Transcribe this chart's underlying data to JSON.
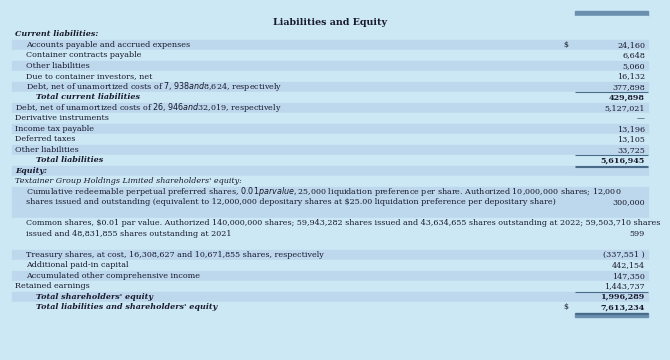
{
  "title": "Liabilities and Equity",
  "bg_light": "#cce8f4",
  "bg_dark": "#bdd8ec",
  "text_color": "#1a1a2e",
  "line_color": "#4a6a8a",
  "top_bar_color": "#6a8faf",
  "font_size": 5.8,
  "title_font_size": 6.8,
  "rows": [
    {
      "label": "Current liabilities:",
      "indent": 0,
      "value": "",
      "dollar": false,
      "bold": true,
      "italic": true,
      "bg": 0,
      "line_below_val": false,
      "dbl_below": false,
      "nlines": 1
    },
    {
      "label": "Accounts payable and accrued expenses",
      "indent": 1,
      "value": "24,160",
      "dollar": true,
      "bold": false,
      "italic": false,
      "bg": 1,
      "line_below_val": false,
      "dbl_below": false,
      "nlines": 1
    },
    {
      "label": "Container contracts payable",
      "indent": 1,
      "value": "6,648",
      "dollar": false,
      "bold": false,
      "italic": false,
      "bg": 0,
      "line_below_val": false,
      "dbl_below": false,
      "nlines": 1
    },
    {
      "label": "Other liabilities",
      "indent": 1,
      "value": "5,060",
      "dollar": false,
      "bold": false,
      "italic": false,
      "bg": 1,
      "line_below_val": false,
      "dbl_below": false,
      "nlines": 1
    },
    {
      "label": "Due to container investors, net",
      "indent": 1,
      "value": "16,132",
      "dollar": false,
      "bold": false,
      "italic": false,
      "bg": 0,
      "line_below_val": false,
      "dbl_below": false,
      "nlines": 1
    },
    {
      "label": "Debt, net of unamortized costs of $7,938 and $8,624, respectively",
      "indent": 1,
      "value": "377,898",
      "dollar": false,
      "bold": false,
      "italic": false,
      "bg": 1,
      "line_below_val": true,
      "dbl_below": false,
      "nlines": 1
    },
    {
      "label": "Total current liabilities",
      "indent": 2,
      "value": "429,898",
      "dollar": false,
      "bold": true,
      "italic": true,
      "bg": 0,
      "line_below_val": false,
      "dbl_below": false,
      "nlines": 1
    },
    {
      "label": "Debt, net of unamortized costs of $26,946 and $32,019, respectively",
      "indent": 0,
      "value": "5,127,021",
      "dollar": false,
      "bold": false,
      "italic": false,
      "bg": 1,
      "line_below_val": false,
      "dbl_below": false,
      "nlines": 1
    },
    {
      "label": "Derivative instruments",
      "indent": 0,
      "value": "—",
      "dollar": false,
      "bold": false,
      "italic": false,
      "bg": 0,
      "line_below_val": false,
      "dbl_below": false,
      "nlines": 1
    },
    {
      "label": "Income tax payable",
      "indent": 0,
      "value": "13,196",
      "dollar": false,
      "bold": false,
      "italic": false,
      "bg": 1,
      "line_below_val": false,
      "dbl_below": false,
      "nlines": 1
    },
    {
      "label": "Deferred taxes",
      "indent": 0,
      "value": "13,105",
      "dollar": false,
      "bold": false,
      "italic": false,
      "bg": 0,
      "line_below_val": false,
      "dbl_below": false,
      "nlines": 1
    },
    {
      "label": "Other liabilities",
      "indent": 0,
      "value": "33,725",
      "dollar": false,
      "bold": false,
      "italic": false,
      "bg": 1,
      "line_below_val": true,
      "dbl_below": false,
      "nlines": 1
    },
    {
      "label": "Total liabilities",
      "indent": 2,
      "value": "5,616,945",
      "dollar": false,
      "bold": true,
      "italic": true,
      "bg": 0,
      "line_below_val": false,
      "dbl_below": true,
      "nlines": 1
    },
    {
      "label": "Equity:",
      "indent": 0,
      "value": "",
      "dollar": false,
      "bold": true,
      "italic": true,
      "bg": 1,
      "line_below_val": false,
      "dbl_below": false,
      "nlines": 1
    },
    {
      "label": "Textainer Group Holdings Limited shareholders' equity:",
      "indent": 0,
      "value": "",
      "dollar": false,
      "bold": false,
      "italic": true,
      "bg": 0,
      "line_below_val": false,
      "dbl_below": false,
      "nlines": 1
    },
    {
      "label": "Cumulative redeemable perpetual preferred shares, $0.01 par value, $25,000 liquidation preference per share. Authorized 10,000,000 shares; 12,000 shares issued and outstanding (equivalent to 12,000,000 depositary shares at $25.00 liquidation preference per depositary share)",
      "indent": 1,
      "value": "300,000",
      "dollar": false,
      "bold": false,
      "italic": false,
      "bg": 1,
      "line_below_val": false,
      "dbl_below": false,
      "nlines": 3
    },
    {
      "label": "Common shares, $0.01 par value. Authorized 140,000,000 shares; 59,943,282 shares issued and 43,634,655 shares outstanding at 2022; 59,503,710 shares issued and 48,831,855 shares outstanding at 2021",
      "indent": 1,
      "value": "599",
      "dollar": false,
      "bold": false,
      "italic": false,
      "bg": 0,
      "line_below_val": false,
      "dbl_below": false,
      "nlines": 3
    },
    {
      "label": "Treasury shares, at cost, 16,308,627 and 10,671,855 shares, respectively",
      "indent": 1,
      "value": "(337,551 )",
      "dollar": false,
      "bold": false,
      "italic": false,
      "bg": 1,
      "line_below_val": false,
      "dbl_below": false,
      "nlines": 1
    },
    {
      "label": "Additional paid-in capital",
      "indent": 1,
      "value": "442,154",
      "dollar": false,
      "bold": false,
      "italic": false,
      "bg": 0,
      "line_below_val": false,
      "dbl_below": false,
      "nlines": 1
    },
    {
      "label": "Accumulated other comprehensive income",
      "indent": 1,
      "value": "147,350",
      "dollar": false,
      "bold": false,
      "italic": false,
      "bg": 1,
      "line_below_val": false,
      "dbl_below": false,
      "nlines": 1
    },
    {
      "label": "Retained earnings",
      "indent": 0,
      "value": "1,443,737",
      "dollar": false,
      "bold": false,
      "italic": false,
      "bg": 0,
      "line_below_val": true,
      "dbl_below": false,
      "nlines": 1
    },
    {
      "label": "Total shareholders' equity",
      "indent": 2,
      "value": "1,996,289",
      "dollar": false,
      "bold": true,
      "italic": true,
      "bg": 1,
      "line_below_val": false,
      "dbl_below": false,
      "nlines": 1
    },
    {
      "label": "Total liabilities and shareholders' equity",
      "indent": 2,
      "value": "7,613,234",
      "dollar": true,
      "bold": true,
      "italic": true,
      "bg": 0,
      "line_below_val": false,
      "dbl_below": true,
      "nlines": 1
    }
  ]
}
